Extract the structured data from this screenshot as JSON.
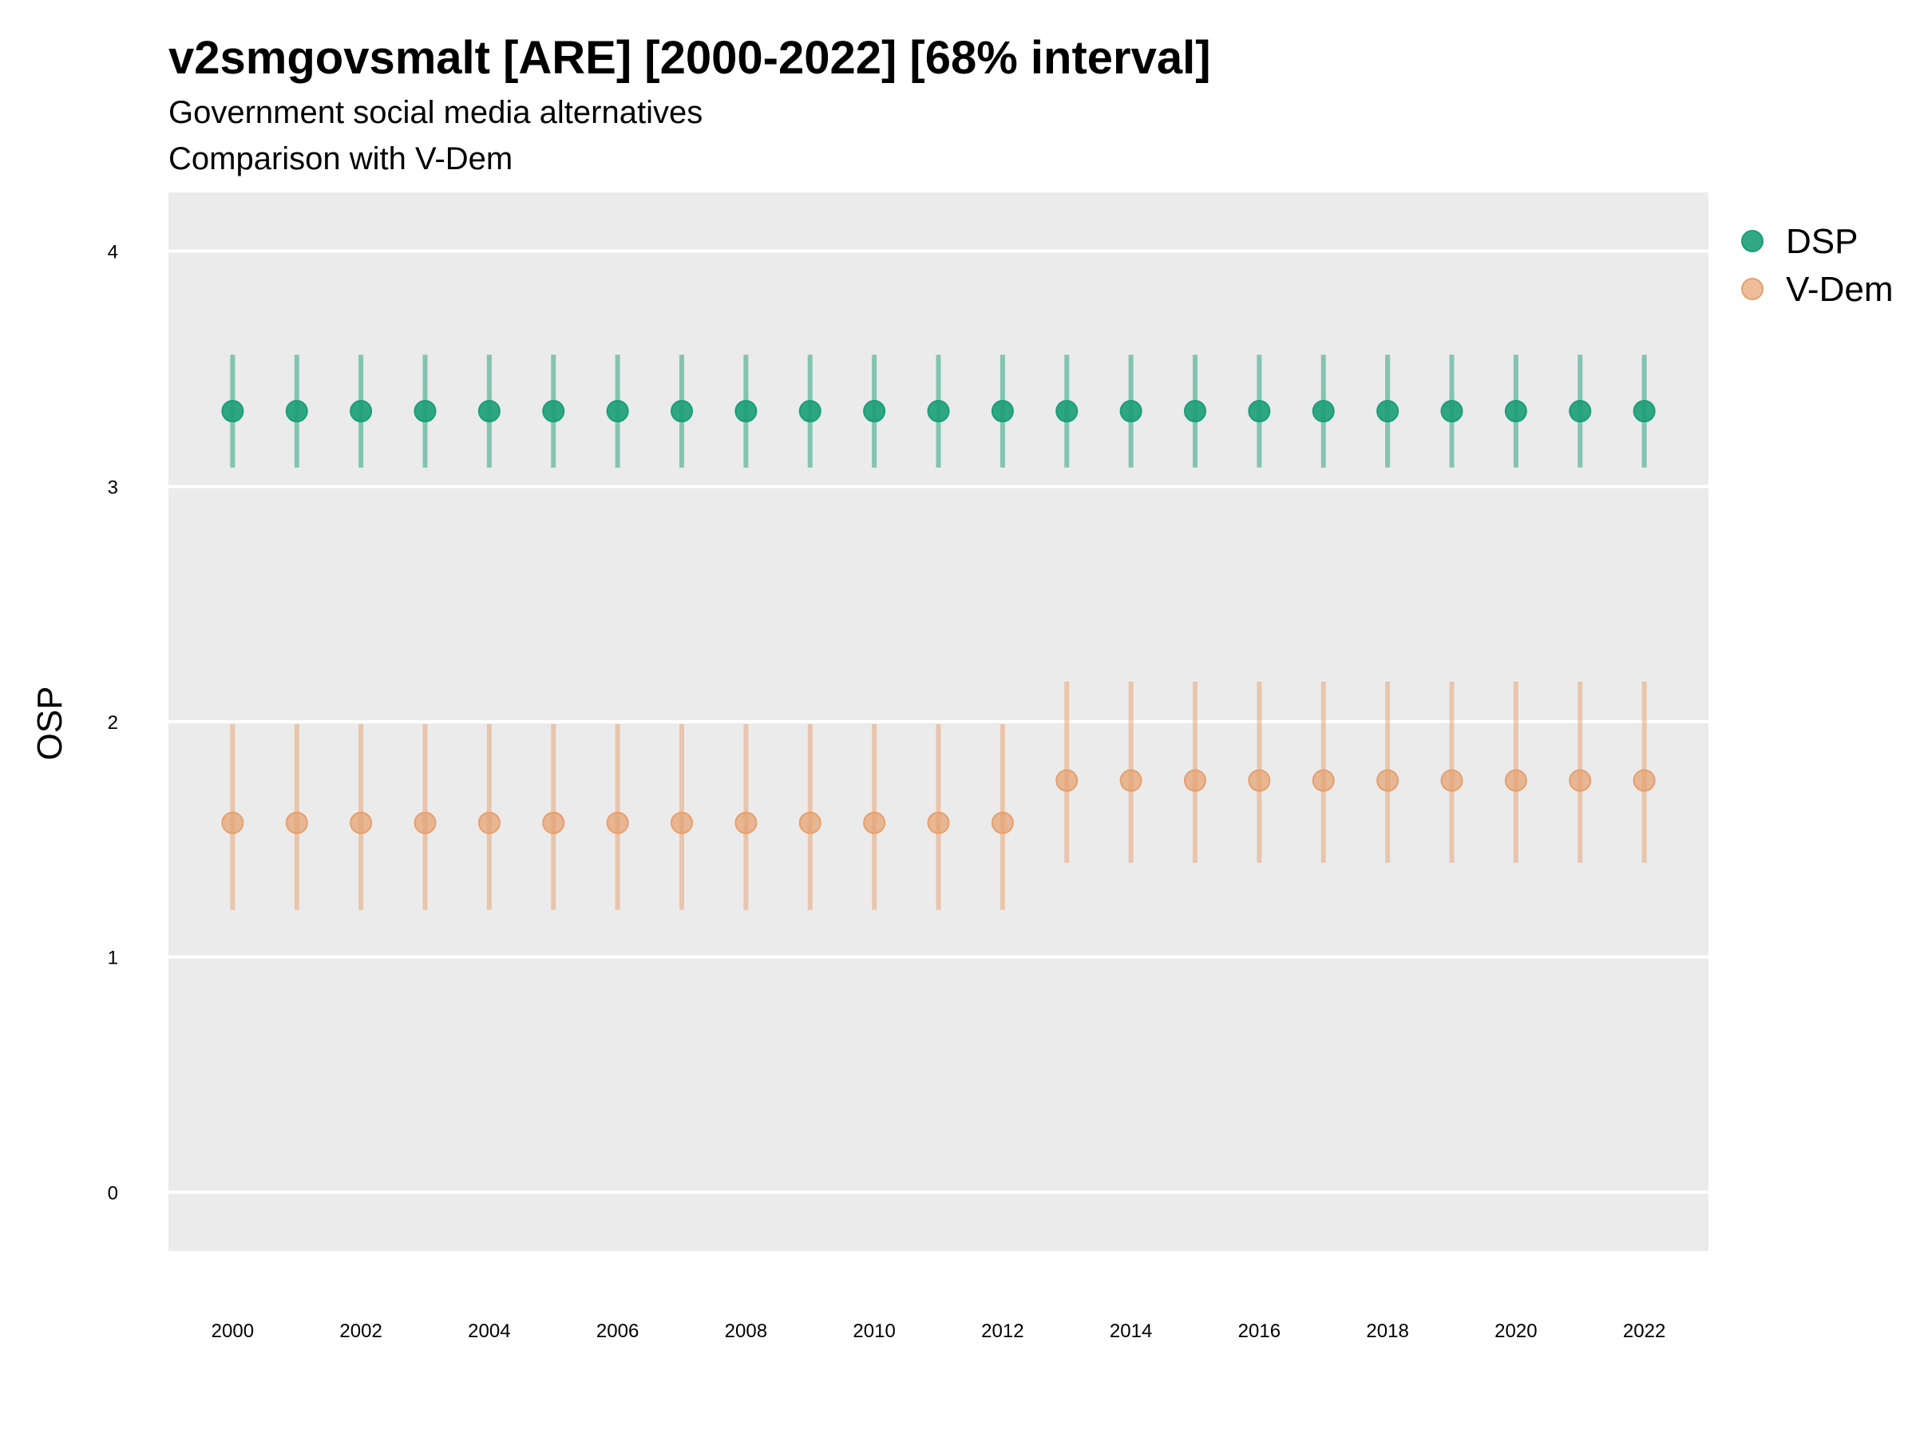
{
  "chart_data": {
    "type": "scatter",
    "title": "v2smgovsmalt [ARE] [2000-2022] [68% interval]",
    "subtitle": "Government social media alternatives",
    "caption_line": "Comparison with V-Dem",
    "xlabel": "",
    "ylabel": "OSP",
    "xlim": [
      1999,
      2023
    ],
    "ylim": [
      -0.25,
      4.25
    ],
    "x_ticks": [
      2000,
      2002,
      2004,
      2006,
      2008,
      2010,
      2012,
      2014,
      2016,
      2018,
      2020,
      2022
    ],
    "y_ticks": [
      0,
      1,
      2,
      3,
      4
    ],
    "grid": true,
    "legend_position": "right",
    "x": [
      2000,
      2001,
      2002,
      2003,
      2004,
      2005,
      2006,
      2007,
      2008,
      2009,
      2010,
      2011,
      2012,
      2013,
      2014,
      2015,
      2016,
      2017,
      2018,
      2019,
      2020,
      2021,
      2022
    ],
    "series": [
      {
        "name": "DSP",
        "color": "#1b9e77",
        "values": [
          3.32,
          3.32,
          3.32,
          3.32,
          3.32,
          3.32,
          3.32,
          3.32,
          3.32,
          3.32,
          3.32,
          3.32,
          3.32,
          3.32,
          3.32,
          3.32,
          3.32,
          3.32,
          3.32,
          3.32,
          3.32,
          3.32,
          3.32
        ],
        "lower": [
          3.08,
          3.08,
          3.08,
          3.08,
          3.08,
          3.08,
          3.08,
          3.08,
          3.08,
          3.08,
          3.08,
          3.08,
          3.08,
          3.08,
          3.08,
          3.08,
          3.08,
          3.08,
          3.08,
          3.08,
          3.08,
          3.08,
          3.08
        ],
        "upper": [
          3.56,
          3.56,
          3.56,
          3.56,
          3.56,
          3.56,
          3.56,
          3.56,
          3.56,
          3.56,
          3.56,
          3.56,
          3.56,
          3.56,
          3.56,
          3.56,
          3.56,
          3.56,
          3.56,
          3.56,
          3.56,
          3.56,
          3.56
        ]
      },
      {
        "name": "V-Dem",
        "color": "#e6a06e",
        "values": [
          1.57,
          1.57,
          1.57,
          1.57,
          1.57,
          1.57,
          1.57,
          1.57,
          1.57,
          1.57,
          1.57,
          1.57,
          1.57,
          1.75,
          1.75,
          1.75,
          1.75,
          1.75,
          1.75,
          1.75,
          1.75,
          1.75,
          1.75
        ],
        "lower": [
          1.2,
          1.2,
          1.2,
          1.2,
          1.2,
          1.2,
          1.2,
          1.2,
          1.2,
          1.2,
          1.2,
          1.2,
          1.2,
          1.4,
          1.4,
          1.4,
          1.4,
          1.4,
          1.4,
          1.4,
          1.4,
          1.4,
          1.4
        ],
        "upper": [
          1.99,
          1.99,
          1.99,
          1.99,
          1.99,
          1.99,
          1.99,
          1.99,
          1.99,
          1.99,
          1.99,
          1.99,
          1.99,
          2.17,
          2.17,
          2.17,
          2.17,
          2.17,
          2.17,
          2.17,
          2.17,
          2.17,
          2.17
        ]
      }
    ]
  }
}
